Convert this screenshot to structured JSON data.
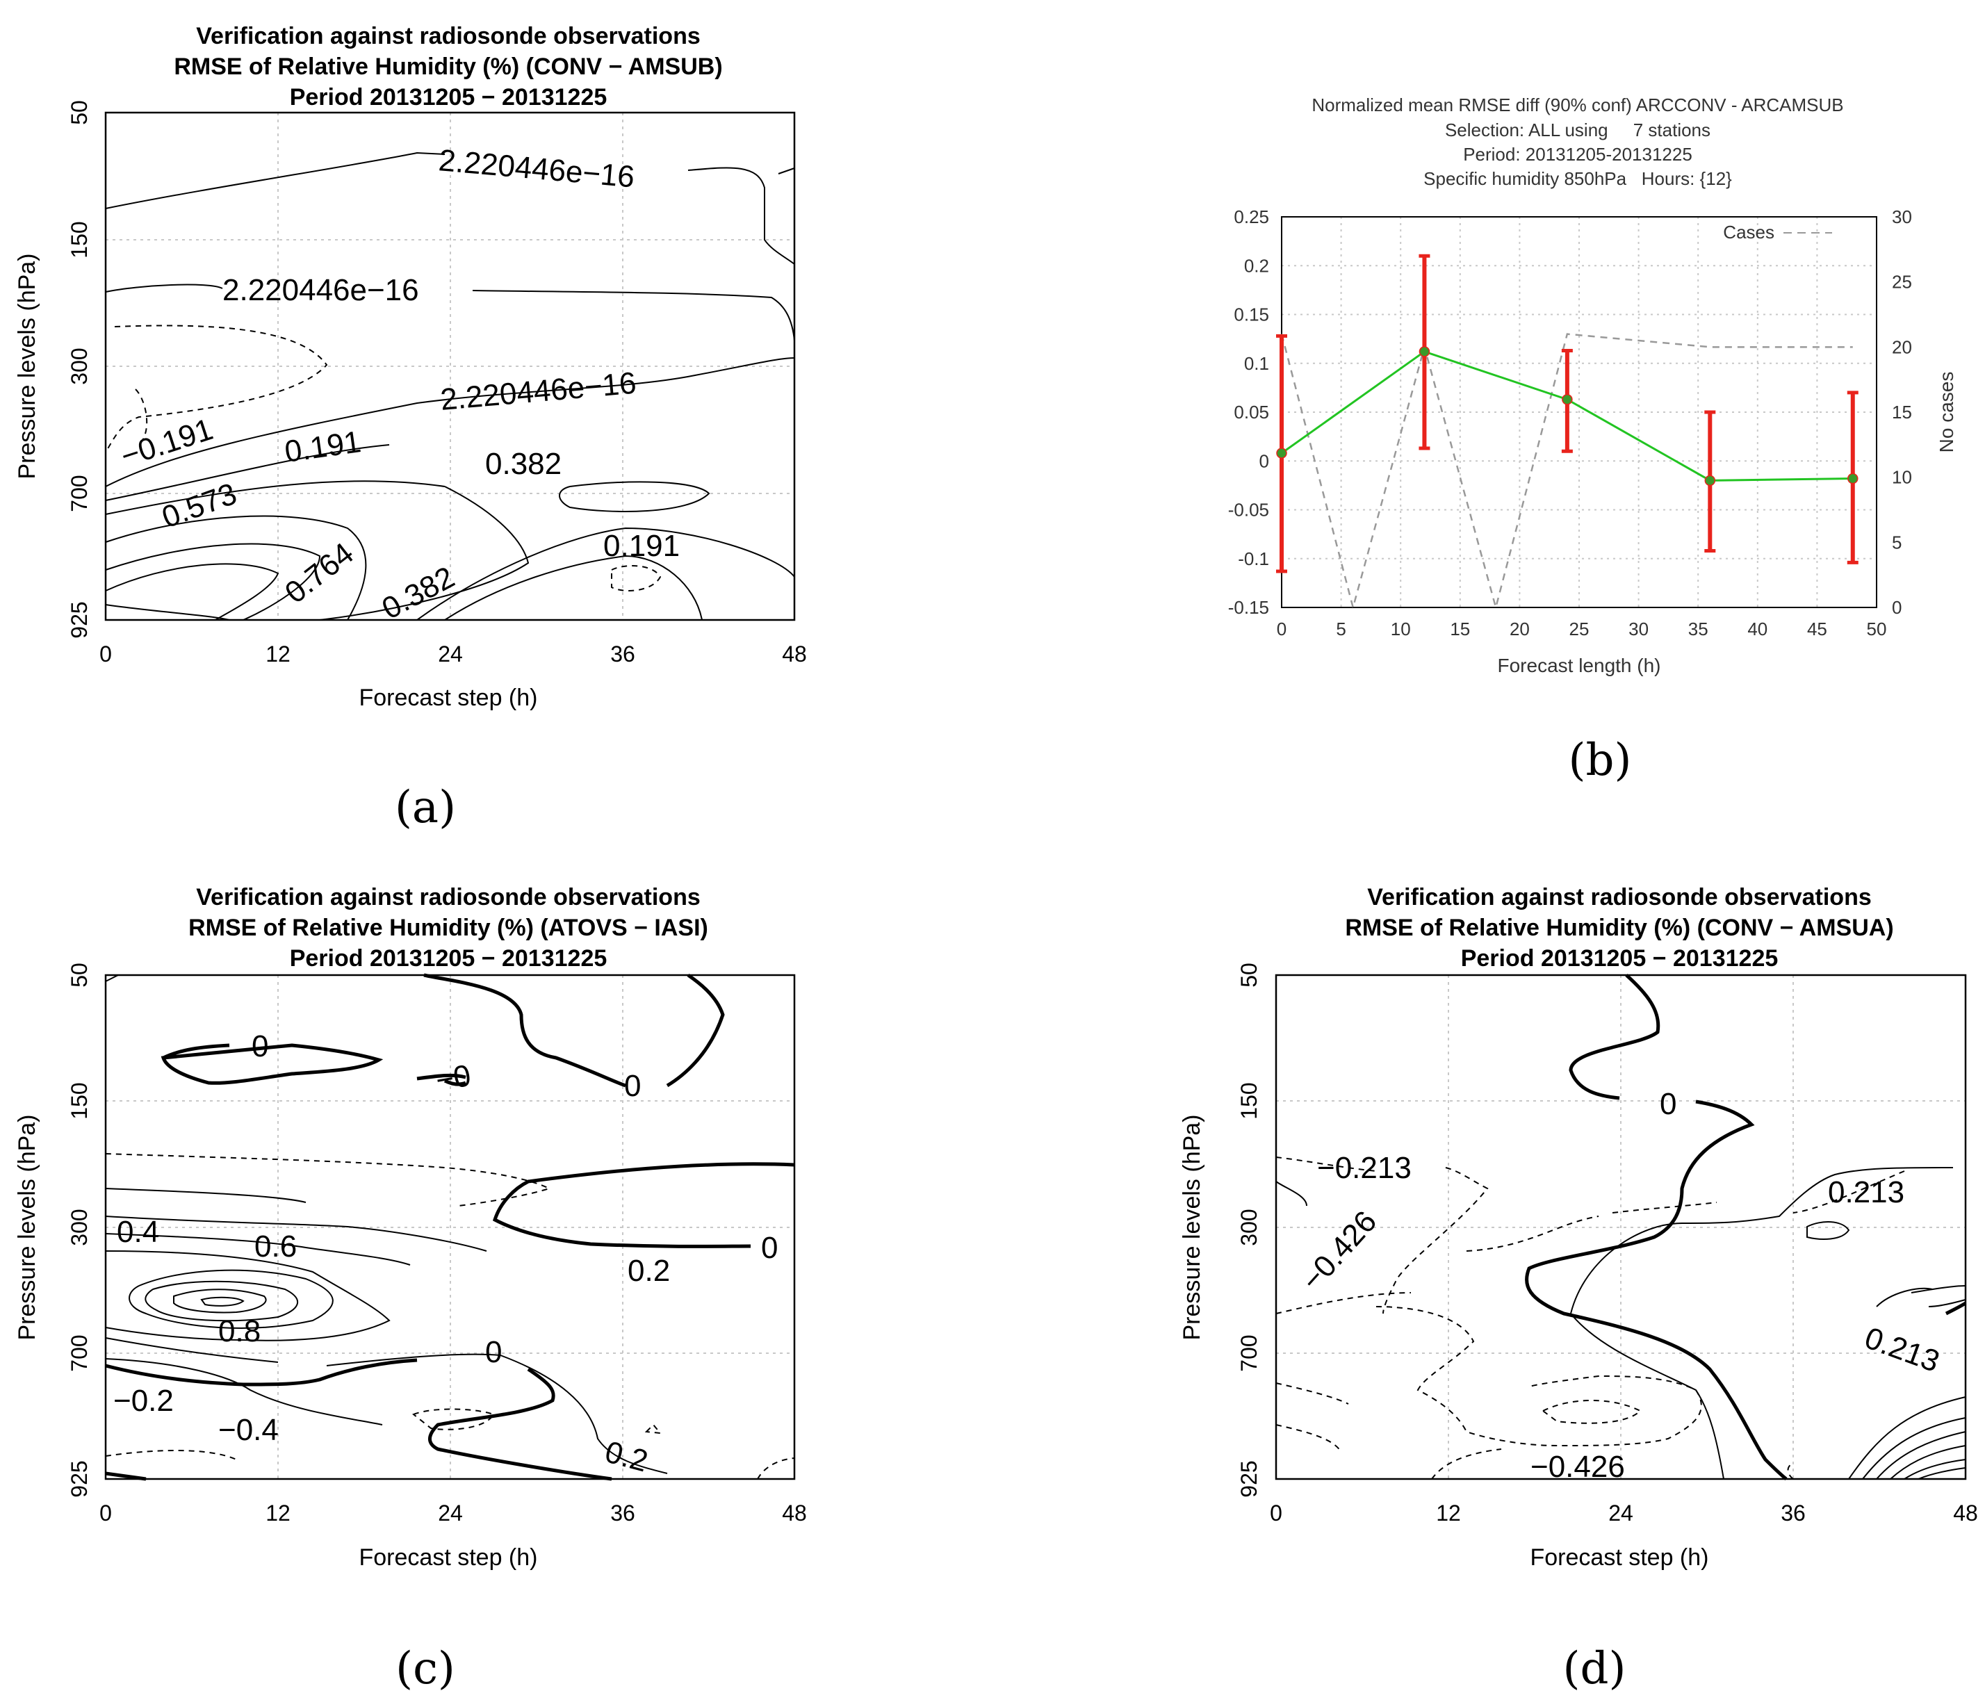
{
  "chart_data": [
    {
      "id": "a",
      "type": "contour",
      "panel_label": "(a)",
      "title": [
        "Verification against radiosonde observations",
        "RMSE of Relative Humidity (%) (CONV − AMSUB)",
        "Period 20131205 − 20131225"
      ],
      "xlabel": "Forecast step (h)",
      "ylabel": "Pressure levels (hPa)",
      "x_ticks": [
        "0",
        "12",
        "24",
        "36",
        "48"
      ],
      "y_ticks": [
        "50",
        "150",
        "300",
        "700",
        "925"
      ],
      "contour_labels": [
        "2.220446e−16",
        "2.220446e−16",
        "2.220446e−16",
        "−0.191",
        "0.191",
        "0.382",
        "0.573",
        "0.764",
        "0.382",
        "0.191"
      ]
    },
    {
      "id": "b",
      "type": "line",
      "panel_label": "(b)",
      "title": [
        "Normalized mean RMSE diff (90% conf) ARCCONV - ARCAMSUB",
        "Selection: ALL using     7 stations",
        "Period: 20131205-20131225",
        "Specific humidity 850hPa   Hours: {12}"
      ],
      "xlabel": "Forecast length (h)",
      "ylabel_right": "No cases",
      "legend": "Cases",
      "x_ticks": [
        "0",
        "5",
        "10",
        "15",
        "20",
        "25",
        "30",
        "35",
        "40",
        "45",
        "50"
      ],
      "y_ticks": [
        "0.25",
        "0.2",
        "0.15",
        "0.1",
        "0.05",
        "0",
        "-0.05",
        "-0.1",
        "-0.15"
      ],
      "y2_ticks": [
        "30",
        "25",
        "20",
        "15",
        "10",
        "5",
        "0"
      ],
      "xlim": [
        0,
        50
      ],
      "ylim": [
        -0.15,
        0.25
      ],
      "y2lim": [
        0,
        30
      ],
      "series": [
        {
          "name": "mean RMSE diff",
          "x": [
            0,
            12,
            24,
            36,
            48
          ],
          "values": [
            0.008,
            0.112,
            0.063,
            -0.02,
            -0.018
          ],
          "lower": [
            -0.113,
            0.013,
            0.01,
            -0.092,
            -0.104
          ],
          "upper": [
            0.128,
            0.21,
            0.113,
            0.05,
            0.07
          ]
        },
        {
          "name": "Cases",
          "x": [
            0,
            6,
            12,
            18,
            24,
            30,
            36,
            42,
            48
          ],
          "values": [
            21,
            0,
            20,
            0,
            21,
            20.5,
            20,
            20,
            20
          ]
        }
      ]
    },
    {
      "id": "c",
      "type": "contour",
      "panel_label": "(c)",
      "title": [
        "Verification against radiosonde observations",
        "RMSE of Relative Humidity (%) (ATOVS − IASI)",
        "Period 20131205 − 20131225"
      ],
      "xlabel": "Forecast step (h)",
      "ylabel": "Pressure levels (hPa)",
      "x_ticks": [
        "0",
        "12",
        "24",
        "36",
        "48"
      ],
      "y_ticks": [
        "50",
        "150",
        "300",
        "700",
        "925"
      ],
      "contour_labels": [
        "0",
        "−0",
        "0",
        "0",
        "0.4",
        "0.6",
        "0.2",
        "0.8",
        "0",
        "−0.2",
        "−0.4",
        "0.2"
      ]
    },
    {
      "id": "d",
      "type": "contour",
      "panel_label": "(d)",
      "title": [
        "Verification against radiosonde observations",
        "RMSE of Relative Humidity (%) (CONV − AMSUA)",
        "Period 20131205 − 20131225"
      ],
      "xlabel": "Forecast step (h)",
      "ylabel": "Pressure levels (hPa)",
      "x_ticks": [
        "0",
        "12",
        "24",
        "36",
        "48"
      ],
      "y_ticks": [
        "50",
        "150",
        "300",
        "700",
        "925"
      ],
      "contour_labels": [
        "0",
        "−0.213",
        "0.213",
        "−0.426",
        "0.213",
        "−0.426"
      ]
    }
  ]
}
